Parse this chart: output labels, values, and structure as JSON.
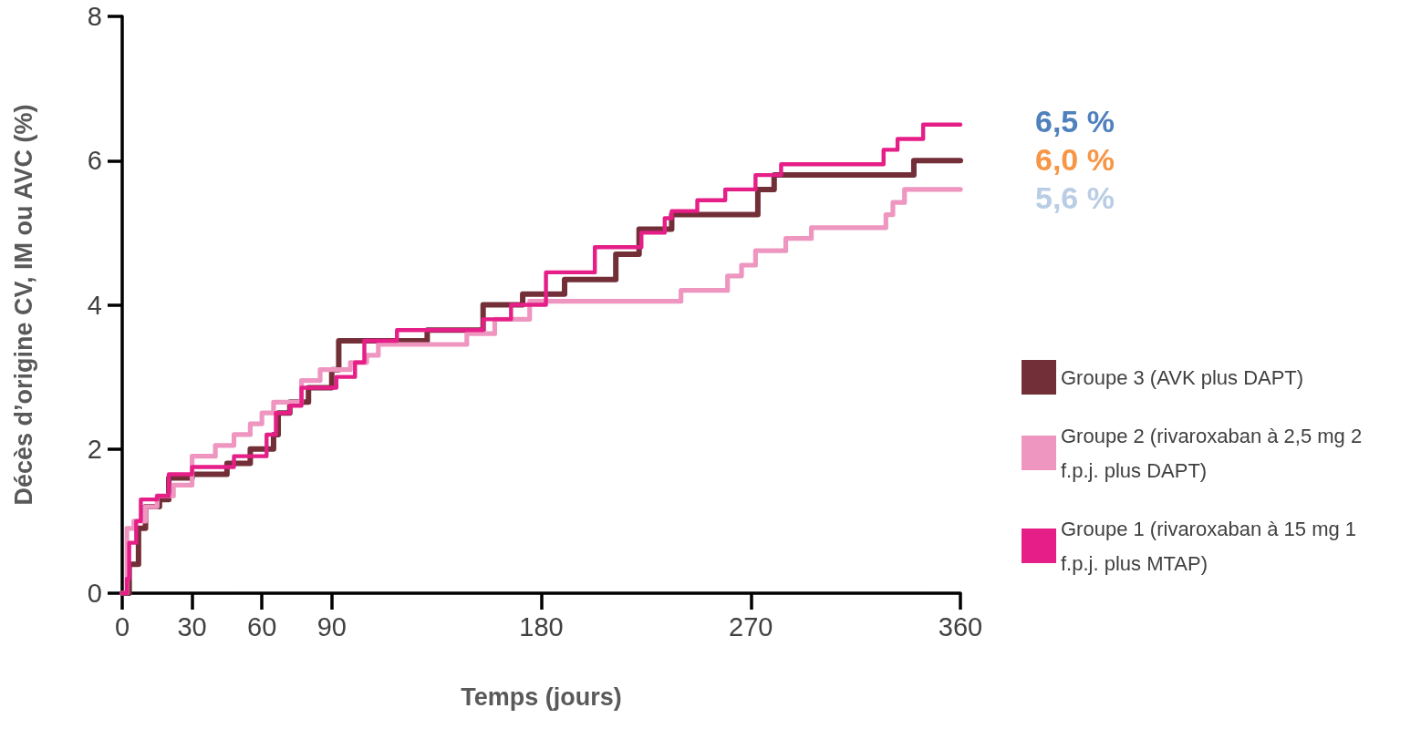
{
  "chart_data": {
    "type": "step",
    "xlabel": "Temps (jours)",
    "ylabel": "Décès d’origine CV, IM ou AVC (%)",
    "xlim": [
      0,
      360
    ],
    "xticks": [
      0,
      30,
      60,
      90,
      180,
      270,
      360
    ],
    "ylim": [
      0,
      8
    ],
    "yticks": [
      0,
      2,
      4,
      6,
      8
    ],
    "grid": false,
    "marker": "none",
    "line_style": "solid",
    "legend": "right",
    "series": [
      {
        "name": "Groupe 3 (AVK plus DAPT)",
        "color": "#722f37",
        "x": [
          0,
          3,
          7,
          10,
          16,
          20,
          30,
          45,
          55,
          65,
          67,
          72,
          80,
          90,
          93,
          131,
          155,
          172,
          190,
          212,
          222,
          236,
          273,
          280,
          340,
          360
        ],
        "values": [
          0,
          0.4,
          0.9,
          1.2,
          1.3,
          1.6,
          1.65,
          1.8,
          2.0,
          2.2,
          2.5,
          2.65,
          2.85,
          3.1,
          3.5,
          3.65,
          4.0,
          4.15,
          4.35,
          4.7,
          5.05,
          5.25,
          5.6,
          5.8,
          6.0,
          6.0
        ]
      },
      {
        "name": "Groupe 2 (rivaroxaban à 2,5 mg 2 f.p.j. plus DAPT)",
        "color": "#ee96c0",
        "x": [
          0,
          2,
          5,
          10,
          15,
          22,
          30,
          40,
          48,
          55,
          60,
          65,
          77,
          85,
          98,
          105,
          110,
          148,
          160,
          175,
          240,
          260,
          266,
          272,
          285,
          296,
          328,
          331,
          336,
          360
        ],
        "values": [
          0,
          0.9,
          1.0,
          1.2,
          1.35,
          1.5,
          1.9,
          2.05,
          2.2,
          2.35,
          2.5,
          2.65,
          2.95,
          3.1,
          3.2,
          3.3,
          3.45,
          3.6,
          3.8,
          4.05,
          4.2,
          4.4,
          4.55,
          4.75,
          4.92,
          5.07,
          5.25,
          5.42,
          5.6,
          5.6
        ]
      },
      {
        "name": "Groupe 1 (rivaroxaban à 15 mg 1 f.p.j. plus MTAP)",
        "color": "#e61e87",
        "x": [
          0,
          2,
          3,
          6,
          8,
          15,
          20,
          30,
          48,
          62,
          66,
          72,
          77,
          92,
          100,
          104,
          118,
          155,
          167,
          182,
          203,
          223,
          233,
          236,
          247,
          259,
          272,
          283,
          327,
          333,
          344,
          360
        ],
        "values": [
          0,
          0.2,
          0.7,
          1.0,
          1.3,
          1.35,
          1.65,
          1.75,
          1.9,
          2.2,
          2.5,
          2.6,
          2.85,
          3.0,
          3.2,
          3.5,
          3.65,
          3.8,
          4.0,
          4.45,
          4.8,
          5.0,
          5.2,
          5.3,
          5.45,
          5.6,
          5.8,
          5.95,
          6.15,
          6.3,
          6.5,
          6.5
        ]
      }
    ],
    "annotations": [
      "6,5 %",
      "6,0 %",
      "5,6 %"
    ]
  }
}
